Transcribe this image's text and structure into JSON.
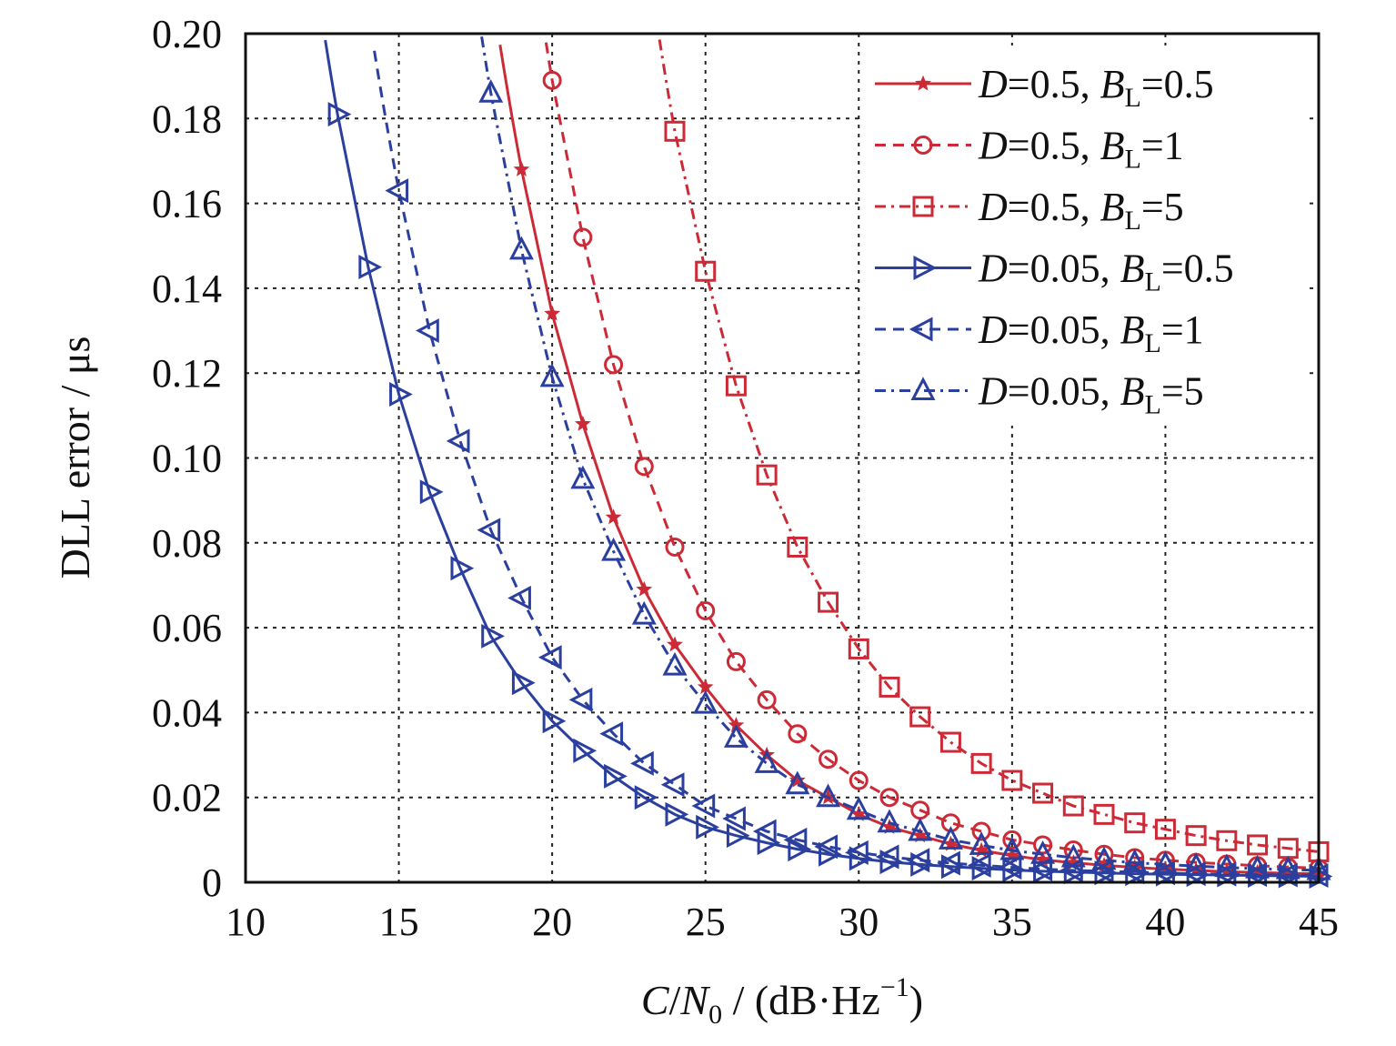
{
  "chart_data": {
    "type": "line",
    "title": "",
    "xlabel": {
      "italic_c": "C",
      "slash": "/",
      "italic_n": "N",
      "sub": "0",
      "units_open": " / (dB·Hz",
      "sup": "−1",
      "units_close": ")"
    },
    "ylabel": "DLL error / μs",
    "xlim": [
      10,
      45
    ],
    "ylim": [
      0,
      0.2
    ],
    "xticks": [
      "10",
      "15",
      "20",
      "25",
      "30",
      "35",
      "40",
      "45"
    ],
    "yticks": [
      "0",
      "0.02",
      "0.04",
      "0.06",
      "0.08",
      "0.10",
      "0.12",
      "0.14",
      "0.16",
      "0.18",
      "0.20"
    ],
    "grid": true,
    "legend_position": "top-right",
    "series": [
      {
        "name": "D=0.5, BL=0.5",
        "legend": {
          "d_label": "D",
          "d_value": "=0.5, ",
          "b_label": "B",
          "b_sub": "L",
          "b_value": "=0.5"
        },
        "color": "#cc2a36",
        "dash": "solid",
        "marker": "star",
        "x": [
          19,
          20,
          21,
          22,
          23,
          24,
          25,
          26,
          27,
          28,
          29,
          30,
          31,
          32,
          33,
          34,
          35,
          36,
          37,
          38,
          39,
          40,
          41,
          42,
          43,
          44,
          45
        ],
        "y": [
          0.168,
          0.134,
          0.108,
          0.086,
          0.069,
          0.056,
          0.046,
          0.037,
          0.03,
          0.024,
          0.02,
          0.016,
          0.013,
          0.011,
          0.009,
          0.0075,
          0.0063,
          0.0053,
          0.0046,
          0.004,
          0.0035,
          0.0031,
          0.0028,
          0.0025,
          0.0023,
          0.0021,
          0.002
        ]
      },
      {
        "name": "D=0.5, BL=1",
        "legend": {
          "d_label": "D",
          "d_value": "=0.5, ",
          "b_label": "B",
          "b_sub": "L",
          "b_value": "=1"
        },
        "color": "#cc2a36",
        "dash": "dashed",
        "marker": "circle",
        "x": [
          20,
          21,
          22,
          23,
          24,
          25,
          26,
          27,
          28,
          29,
          30,
          31,
          32,
          33,
          34,
          35,
          36,
          37,
          38,
          39,
          40,
          41,
          42,
          43,
          44,
          45
        ],
        "y": [
          0.189,
          0.152,
          0.122,
          0.098,
          0.079,
          0.064,
          0.052,
          0.043,
          0.035,
          0.029,
          0.024,
          0.02,
          0.017,
          0.014,
          0.012,
          0.01,
          0.0088,
          0.0076,
          0.0066,
          0.0058,
          0.0052,
          0.0047,
          0.0043,
          0.0039,
          0.0036,
          0.0033
        ]
      },
      {
        "name": "D=0.5, BL=5",
        "legend": {
          "d_label": "D",
          "d_value": "=0.5, ",
          "b_label": "B",
          "b_sub": "L",
          "b_value": "=5"
        },
        "color": "#cc2a36",
        "dash": "dashdot",
        "marker": "square",
        "x": [
          24,
          25,
          26,
          27,
          28,
          29,
          30,
          31,
          32,
          33,
          34,
          35,
          36,
          37,
          38,
          39,
          40,
          41,
          42,
          43,
          44,
          45
        ],
        "y": [
          0.177,
          0.144,
          0.117,
          0.096,
          0.079,
          0.066,
          0.055,
          0.046,
          0.039,
          0.033,
          0.028,
          0.024,
          0.021,
          0.018,
          0.016,
          0.014,
          0.0125,
          0.011,
          0.0098,
          0.0088,
          0.008,
          0.0072
        ]
      },
      {
        "name": "D=0.05, BL=0.5",
        "legend": {
          "d_label": "D",
          "d_value": "=0.05, ",
          "b_label": "B",
          "b_sub": "L",
          "b_value": "=0.5"
        },
        "color": "#2b3f9e",
        "dash": "solid",
        "marker": "triangle-right",
        "x": [
          13,
          14,
          15,
          16,
          17,
          18,
          19,
          20,
          21,
          22,
          23,
          24,
          25,
          26,
          27,
          28,
          29,
          30,
          31,
          32,
          33,
          34,
          35,
          36,
          37,
          38,
          39,
          40,
          41,
          42,
          43,
          44,
          45
        ],
        "y": [
          0.181,
          0.145,
          0.115,
          0.092,
          0.074,
          0.058,
          0.047,
          0.038,
          0.031,
          0.025,
          0.02,
          0.016,
          0.013,
          0.011,
          0.0093,
          0.0078,
          0.0066,
          0.0056,
          0.0048,
          0.0042,
          0.0037,
          0.0033,
          0.0029,
          0.0026,
          0.0024,
          0.0022,
          0.002,
          0.0019,
          0.0018,
          0.0017,
          0.0016,
          0.0015,
          0.0014
        ]
      },
      {
        "name": "D=0.05, BL=1",
        "legend": {
          "d_label": "D",
          "d_value": "=0.05, ",
          "b_label": "B",
          "b_sub": "L",
          "b_value": "=1"
        },
        "color": "#2b3f9e",
        "dash": "dashed",
        "marker": "triangle-left",
        "x": [
          15,
          16,
          17,
          18,
          19,
          20,
          21,
          22,
          23,
          24,
          25,
          26,
          27,
          28,
          29,
          30,
          31,
          32,
          33,
          34,
          35,
          36,
          37,
          38,
          39,
          40,
          41,
          42,
          43,
          44,
          45
        ],
        "y": [
          0.163,
          0.13,
          0.104,
          0.083,
          0.067,
          0.053,
          0.043,
          0.035,
          0.028,
          0.023,
          0.018,
          0.015,
          0.012,
          0.01,
          0.0084,
          0.007,
          0.006,
          0.0052,
          0.0045,
          0.004,
          0.0035,
          0.0031,
          0.0028,
          0.0026,
          0.0024,
          0.0022,
          0.002,
          0.0019,
          0.0018,
          0.0017,
          0.0016
        ]
      },
      {
        "name": "D=0.05, BL=5",
        "legend": {
          "d_label": "D",
          "d_value": "=0.05, ",
          "b_label": "B",
          "b_sub": "L",
          "b_value": "=5"
        },
        "color": "#2b3f9e",
        "dash": "dashdot",
        "marker": "triangle-up",
        "x": [
          18,
          19,
          20,
          21,
          22,
          23,
          24,
          25,
          26,
          27,
          28,
          29,
          30,
          31,
          32,
          33,
          34,
          35,
          36,
          37,
          38,
          39,
          40,
          41,
          42,
          43,
          44,
          45
        ],
        "y": [
          0.186,
          0.149,
          0.119,
          0.095,
          0.078,
          0.063,
          0.051,
          0.042,
          0.034,
          0.028,
          0.023,
          0.02,
          0.017,
          0.014,
          0.012,
          0.01,
          0.0087,
          0.0075,
          0.0066,
          0.0058,
          0.0052,
          0.0046,
          0.0042,
          0.0038,
          0.0035,
          0.0032,
          0.003,
          0.0028
        ]
      }
    ]
  }
}
